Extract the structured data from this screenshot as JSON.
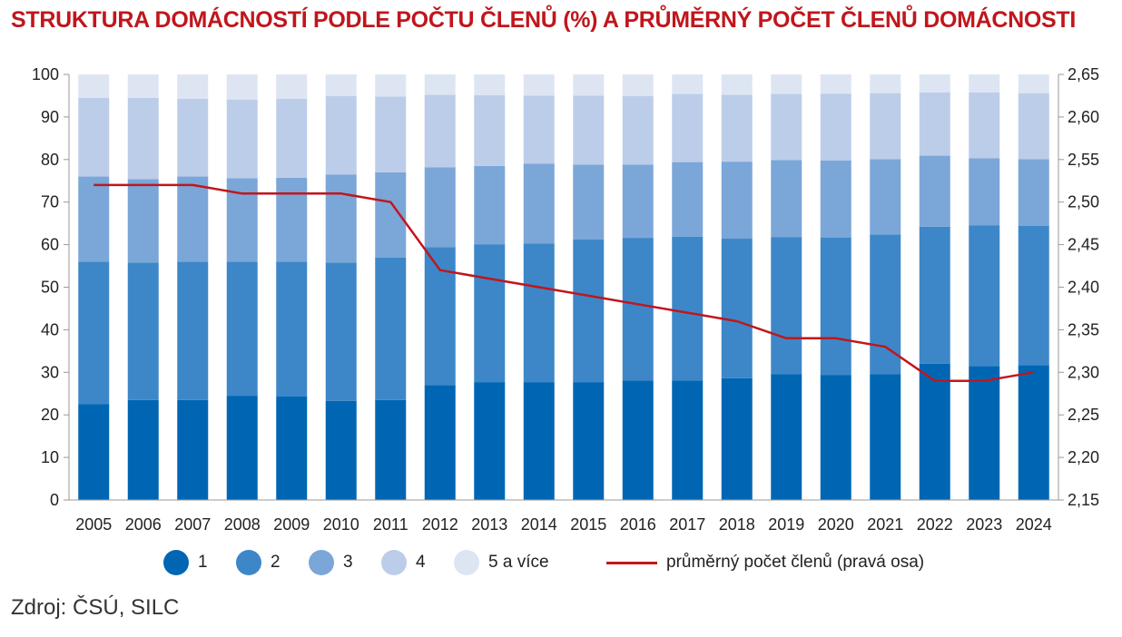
{
  "source": "Zdroj: ČSÚ, SILC",
  "chart_data": {
    "type": "bar",
    "stacked": true,
    "title": "STRUKTURA DOMÁCNOSTÍ PODLE POČTU ČLENŮ (%) A PRŮMĚRNÝ POČET ČLENŮ DOMÁCNOSTI",
    "categories": [
      "2005",
      "2006",
      "2007",
      "2008",
      "2009",
      "2010",
      "2011",
      "2012",
      "2013",
      "2014",
      "2015",
      "2016",
      "2017",
      "2018",
      "2019",
      "2020",
      "2021",
      "2022",
      "2023",
      "2024"
    ],
    "ylim": [
      0,
      100
    ],
    "yticks": [
      0,
      10,
      20,
      30,
      40,
      50,
      60,
      70,
      80,
      90,
      100
    ],
    "ytick_labels": [
      "0",
      "10",
      "20",
      "30",
      "40",
      "50",
      "60",
      "70",
      "80",
      "90",
      "100"
    ],
    "y2lim": [
      2.15,
      2.65
    ],
    "y2ticks": [
      2.15,
      2.2,
      2.25,
      2.3,
      2.35,
      2.4,
      2.45,
      2.5,
      2.55,
      2.6,
      2.65
    ],
    "y2tick_labels": [
      "2,15",
      "2,20",
      "2,25",
      "2,30",
      "2,35",
      "2,40",
      "2,45",
      "2,50",
      "2,55",
      "2,60",
      "2,65"
    ],
    "grid": false,
    "legend_position": "bottom",
    "series": [
      {
        "name": "1",
        "color": "#0066b3",
        "values": [
          22.5,
          23.5,
          23.5,
          24.5,
          24.3,
          23.3,
          23.5,
          27,
          27.7,
          27.7,
          27.7,
          28.1,
          28.1,
          28.6,
          29.6,
          29.4,
          29.6,
          32,
          31.5,
          31.7
        ]
      },
      {
        "name": "2",
        "color": "#3d87c8",
        "values": [
          33.5,
          32.3,
          32.5,
          31.5,
          31.7,
          32.5,
          33.5,
          32.4,
          32.4,
          32.6,
          33.5,
          33.5,
          33.8,
          32.8,
          32.2,
          32.3,
          32.8,
          32.2,
          33,
          32.7
        ]
      },
      {
        "name": "3",
        "color": "#7ba6d8",
        "values": [
          20,
          19.6,
          20,
          19.6,
          19.7,
          20.7,
          20,
          18.8,
          18.4,
          18.7,
          17.6,
          17.2,
          17.5,
          18.1,
          18.1,
          18.1,
          17.7,
          16.7,
          15.8,
          15.7
        ]
      },
      {
        "name": "4",
        "color": "#bccde9",
        "values": [
          18.5,
          19.1,
          18.3,
          18.5,
          18.6,
          18.4,
          17.8,
          17,
          16.6,
          16,
          16.2,
          16.1,
          16,
          15.7,
          15.5,
          15.7,
          15.5,
          14.9,
          15.5,
          15.5
        ]
      },
      {
        "name": "5 a více",
        "color": "#dde5f3",
        "values": [
          5.5,
          5.5,
          5.7,
          5.9,
          5.7,
          5.1,
          5.2,
          4.8,
          4.9,
          5,
          5,
          5.1,
          4.6,
          4.8,
          4.6,
          4.5,
          4.4,
          4.2,
          4.2,
          4.4
        ]
      }
    ],
    "line": {
      "name": "průměrný počet členů (pravá osa)",
      "color": "#c0161c",
      "axis": "right",
      "values": [
        2.52,
        2.52,
        2.52,
        2.51,
        2.51,
        2.51,
        2.5,
        2.42,
        2.41,
        2.4,
        2.39,
        2.38,
        2.37,
        2.36,
        2.34,
        2.34,
        2.33,
        2.29,
        2.29,
        2.3
      ]
    }
  }
}
